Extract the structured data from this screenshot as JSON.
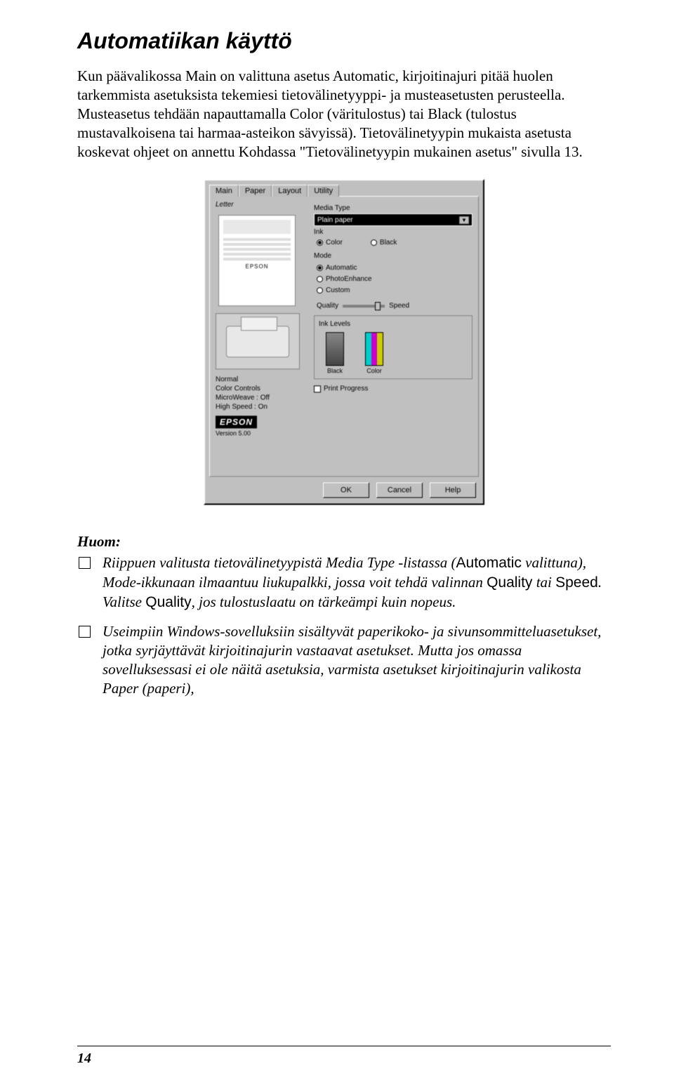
{
  "heading": "Automatiikan käyttö",
  "paragraph": "Kun päävalikossa Main on valittuna asetus Automatic, kirjoitinajuri pitää huolen tarkemmista asetuksista tekemiesi tietovälinetyyppi- ja musteasetusten perusteella. Musteasetus tehdään napauttamalla Color (väritulostus) tai Black (tulostus mustavalkoisena tai harmaa-asteikon sävyissä). Tietovälinetyypin mukaista asetusta koskevat ohjeet on annettu Kohdassa \"Tietovälinetyypin mukainen asetus\" sivulla 13.",
  "dialog": {
    "tabs": [
      "Main",
      "Paper",
      "Layout",
      "Utility"
    ],
    "letter_label": "Letter",
    "media_type_label": "Media Type",
    "media_type_value": "Plain paper",
    "ink_label": "Ink",
    "ink_options": [
      "Color",
      "Black"
    ],
    "mode_label": "Mode",
    "mode_options": [
      "Automatic",
      "PhotoEnhance",
      "Custom"
    ],
    "slider_left": "Quality",
    "slider_right": "Speed",
    "status": {
      "r1": "Normal",
      "r2": "Color Controls",
      "r3": "MicroWeave : Off",
      "r4": "High Speed : On"
    },
    "ink_levels_label": "Ink Levels",
    "ink_black": "Black",
    "ink_color": "Color",
    "print_progress": "Print Progress",
    "epson_small": "EPSON",
    "epson_logo": "EPSON",
    "version": "Version 5.00",
    "buttons": {
      "ok": "OK",
      "cancel": "Cancel",
      "help": "Help"
    }
  },
  "note_label": "Huom:",
  "note1_pre": "Riippuen valitusta tietovälinetyypistä Media Type -listassa (",
  "note1_auto": "Automatic",
  "note1_mid": " valittuna), Mode-ikkunaan ilmaantuu liukupalkki, jossa voit tehdä valinnan ",
  "note1_quality": "Quality",
  "note1_tai": " tai ",
  "note1_speed": "Speed",
  "note1_valitse": ". Valitse ",
  "note1_quality2": "Quality",
  "note1_end": ", jos tulostuslaatu on tärkeämpi kuin nopeus.",
  "note2": "Useimpiin Windows-sovelluksiin sisältyvät paperikoko- ja sivunsommitteluasetukset, jotka syrjäyttävät kirjoitinajurin vastaavat asetukset. Mutta jos omassa sovelluksessasi ei ole näitä asetuksia, varmista asetukset kirjoitinajurin valikosta Paper (paperi),",
  "page_number": "14"
}
